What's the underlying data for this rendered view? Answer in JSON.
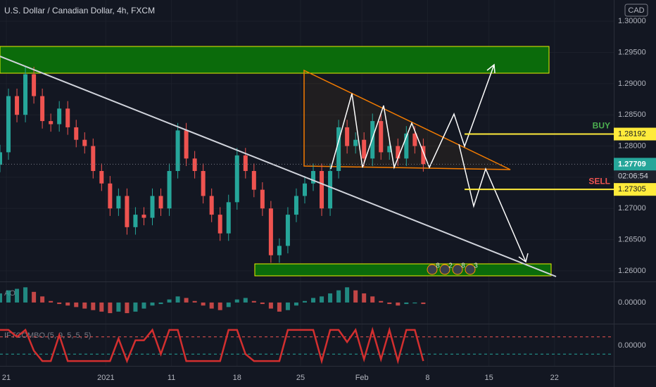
{
  "chart_data": {
    "type": "candlestick",
    "title": "U.S. Dollar / Canadian Dollar, 4h, FXCM",
    "currency": "CAD",
    "x": [
      0,
      4,
      8,
      12,
      16,
      20,
      24,
      28,
      32,
      36,
      40,
      44,
      48,
      52,
      56,
      60,
      64,
      68,
      72,
      76,
      80,
      84,
      88,
      92,
      96,
      100,
      104,
      108,
      112,
      116,
      120,
      124,
      128,
      132,
      136,
      140,
      144,
      148,
      152,
      156,
      160,
      164,
      168,
      172,
      176,
      180,
      184,
      188,
      192,
      196,
      200
    ],
    "open": [
      1.277,
      1.279,
      1.288,
      1.285,
      1.2915,
      1.288,
      1.284,
      1.2835,
      1.286,
      1.283,
      1.281,
      1.28,
      1.276,
      1.274,
      1.27,
      1.272,
      1.267,
      1.269,
      1.2685,
      1.272,
      1.27,
      1.276,
      1.2825,
      1.278,
      1.276,
      1.272,
      1.269,
      1.266,
      1.271,
      1.2785,
      1.276,
      1.273,
      1.27,
      1.2625,
      1.264,
      1.269,
      1.272,
      1.274,
      1.276,
      1.27,
      1.276,
      1.283,
      1.28,
      1.281,
      1.278,
      1.284,
      1.279,
      1.28,
      1.278,
      1.282,
      1.28
    ],
    "high": [
      1.2802,
      1.2892,
      1.2892,
      1.2927,
      1.2927,
      1.2892,
      1.2852,
      1.2872,
      1.2872,
      1.2842,
      1.2822,
      1.2812,
      1.2772,
      1.2752,
      1.2732,
      1.2732,
      1.2702,
      1.2702,
      1.2732,
      1.2732,
      1.2772,
      1.2837,
      1.2837,
      1.2792,
      1.2772,
      1.2732,
      1.2702,
      1.2722,
      1.2797,
      1.2797,
      1.2772,
      1.2742,
      1.2712,
      1.2652,
      1.2702,
      1.2732,
      1.2752,
      1.2772,
      1.2772,
      1.2772,
      1.2842,
      1.2842,
      1.2822,
      1.2822,
      1.2852,
      1.2852,
      1.2812,
      1.2812,
      1.2832,
      1.2832,
      1.2812
    ],
    "low": [
      1.2758,
      1.2778,
      1.2838,
      1.2838,
      1.2868,
      1.2828,
      1.2823,
      1.2823,
      1.2818,
      1.2798,
      1.2788,
      1.2748,
      1.2728,
      1.2688,
      1.2688,
      1.2658,
      1.2658,
      1.2673,
      1.2673,
      1.2688,
      1.2688,
      1.2748,
      1.2768,
      1.2748,
      1.2708,
      1.2678,
      1.2648,
      1.2648,
      1.2698,
      1.2748,
      1.2718,
      1.2688,
      1.2613,
      1.2613,
      1.2628,
      1.2678,
      1.2708,
      1.2728,
      1.2688,
      1.2688,
      1.2748,
      1.2788,
      1.2788,
      1.2768,
      1.2768,
      1.2778,
      1.2778,
      1.2768,
      1.2768,
      1.2788,
      1.2759
    ],
    "close": [
      1.279,
      1.288,
      1.285,
      1.2915,
      1.288,
      1.284,
      1.2835,
      1.286,
      1.283,
      1.281,
      1.28,
      1.276,
      1.274,
      1.27,
      1.272,
      1.267,
      1.269,
      1.2685,
      1.272,
      1.27,
      1.276,
      1.2825,
      1.278,
      1.276,
      1.272,
      1.269,
      1.266,
      1.271,
      1.2785,
      1.276,
      1.273,
      1.27,
      1.2625,
      1.264,
      1.269,
      1.272,
      1.274,
      1.276,
      1.27,
      1.276,
      1.283,
      1.28,
      1.281,
      1.278,
      1.284,
      1.279,
      1.28,
      1.278,
      1.282,
      1.28,
      1.2771
    ],
    "up_color": "#26a69a",
    "down_color": "#ef5350",
    "xlim": [
      0,
      290
    ],
    "xticks": [
      {
        "value": 3,
        "label": "21"
      },
      {
        "value": 50,
        "label": "2021"
      },
      {
        "value": 81,
        "label": "11"
      },
      {
        "value": 112,
        "label": "18"
      },
      {
        "value": 142,
        "label": "25"
      },
      {
        "value": 171,
        "label": "Feb"
      },
      {
        "value": 202,
        "label": "8"
      },
      {
        "value": 231,
        "label": "15"
      },
      {
        "value": 262,
        "label": "22"
      }
    ],
    "ylim": [
      1.2583,
      1.3034
    ],
    "yticks": [
      {
        "value": 1.3,
        "label": "1.30000"
      },
      {
        "value": 1.295,
        "label": "1.29500"
      },
      {
        "value": 1.29,
        "label": "1.29000"
      },
      {
        "value": 1.285,
        "label": "1.28500"
      },
      {
        "value": 1.28,
        "label": "1.28000"
      },
      {
        "value": 1.275,
        "label": "1.27500"
      },
      {
        "value": 1.27,
        "label": "1.27000"
      },
      {
        "value": 1.265,
        "label": "1.26500"
      },
      {
        "value": 1.26,
        "label": "1.26000"
      }
    ],
    "grid": true,
    "last_price": 1.27709,
    "last_price_label": "1.27709",
    "countdown": "02:06:54",
    "price_lines": {
      "names": [
        "BUY",
        "SELL"
      ],
      "values": [
        1.28192,
        1.27305
      ],
      "value_labels": [
        "1.28192",
        "1.27305"
      ],
      "colors": [
        "#4caf50",
        "#ef5350"
      ]
    },
    "events": [
      "8",
      "2",
      "8",
      "3"
    ],
    "indicators": [
      {
        "name": "AO",
        "type": "bar",
        "values": [
          0.003,
          0.004,
          0.0045,
          0.005,
          0.0035,
          0.002,
          0.0005,
          -0.0005,
          -0.001,
          -0.0015,
          -0.002,
          -0.0025,
          -0.003,
          -0.0035,
          -0.003,
          -0.0035,
          -0.003,
          -0.002,
          -0.001,
          -0.0005,
          0.001,
          0.002,
          0.0015,
          0.0005,
          -0.001,
          -0.002,
          -0.0025,
          -0.0015,
          0.001,
          0.0015,
          0.0005,
          -0.0005,
          -0.002,
          -0.003,
          -0.0025,
          -0.001,
          0.0005,
          0.0015,
          0.002,
          0.003,
          0.004,
          0.005,
          0.004,
          0.003,
          0.002,
          0.0005,
          -0.0005,
          -0.001,
          -0.0005,
          -0.0003,
          -0.0005
        ],
        "ylim": [
          -0.0065,
          0.006
        ],
        "yticks": [
          {
            "value": 0,
            "label": "0.00000"
          }
        ]
      },
      {
        "name": "IFTCOMBO (5, 9, 5, 5, 5)",
        "type": "line",
        "color": "#d32f2f",
        "values": [
          0.9,
          0.9,
          0.5,
          0.9,
          -0.3,
          -0.9,
          -0.9,
          0.6,
          -0.9,
          -0.9,
          -0.9,
          -0.9,
          -0.9,
          -0.9,
          0.4,
          -0.9,
          0.3,
          0.3,
          0.9,
          -0.5,
          0.9,
          0.9,
          -0.9,
          -0.9,
          -0.9,
          -0.9,
          -0.9,
          0.9,
          0.9,
          -0.5,
          -0.9,
          -0.9,
          -0.9,
          -0.9,
          0.9,
          0.9,
          0.9,
          0.9,
          -0.9,
          0.9,
          0.9,
          0.2,
          0.9,
          -0.8,
          0.9,
          -0.8,
          0.9,
          -0.9,
          0.9,
          0.9,
          -0.9
        ],
        "ylim": [
          -1.1,
          1.1
        ],
        "yticks": [
          {
            "value": 0,
            "label": "0.00000"
          }
        ],
        "levels": [
          0.5,
          -0.5
        ],
        "level_colors": [
          "#ef5350",
          "#26a69a"
        ]
      }
    ]
  }
}
